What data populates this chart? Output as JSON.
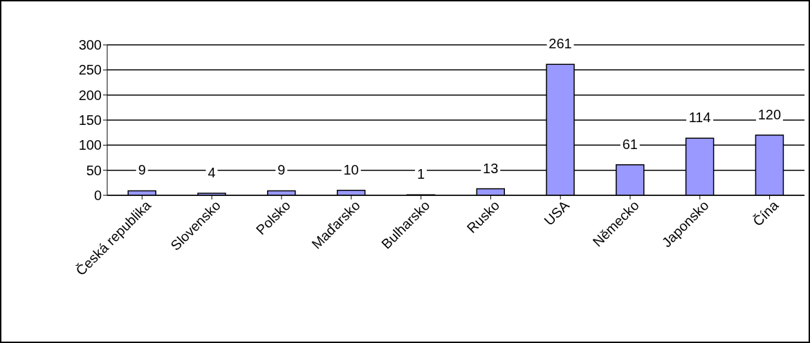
{
  "chart_data": {
    "type": "bar",
    "categories": [
      "Česká republika",
      "Slovensko",
      "Polsko",
      "Maďarsko",
      "Bulharsko",
      "Rusko",
      "USA",
      "Německo",
      "Japonsko",
      "Čína"
    ],
    "values": [
      9,
      4,
      9,
      10,
      1,
      13,
      261,
      61,
      114,
      120
    ],
    "color": "#9999ff",
    "ylim": [
      0,
      300
    ],
    "yticks": [
      0,
      50,
      100,
      150,
      200,
      250,
      300
    ],
    "grid": "y",
    "data_labels": true,
    "legend": false
  }
}
